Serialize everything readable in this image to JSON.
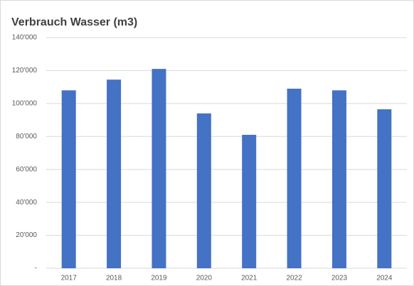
{
  "chart_data": {
    "type": "bar",
    "title": "Verbrauch Wasser (m3)",
    "categories": [
      "2017",
      "2018",
      "2019",
      "2020",
      "2021",
      "2022",
      "2023",
      "2024"
    ],
    "values": [
      108000,
      114500,
      121000,
      94000,
      81000,
      109000,
      108000,
      96500
    ],
    "color": "#4472c4",
    "ylim": [
      0,
      140000
    ],
    "yticks": [
      {
        "value": 0,
        "label": "-"
      },
      {
        "value": 20000,
        "label": "20'000"
      },
      {
        "value": 40000,
        "label": "40'000"
      },
      {
        "value": 60000,
        "label": "60'000"
      },
      {
        "value": 80000,
        "label": "80'000"
      },
      {
        "value": 100000,
        "label": "100'000"
      },
      {
        "value": 120000,
        "label": "120'000"
      },
      {
        "value": 140000,
        "label": "140'000"
      }
    ],
    "grid": true
  }
}
